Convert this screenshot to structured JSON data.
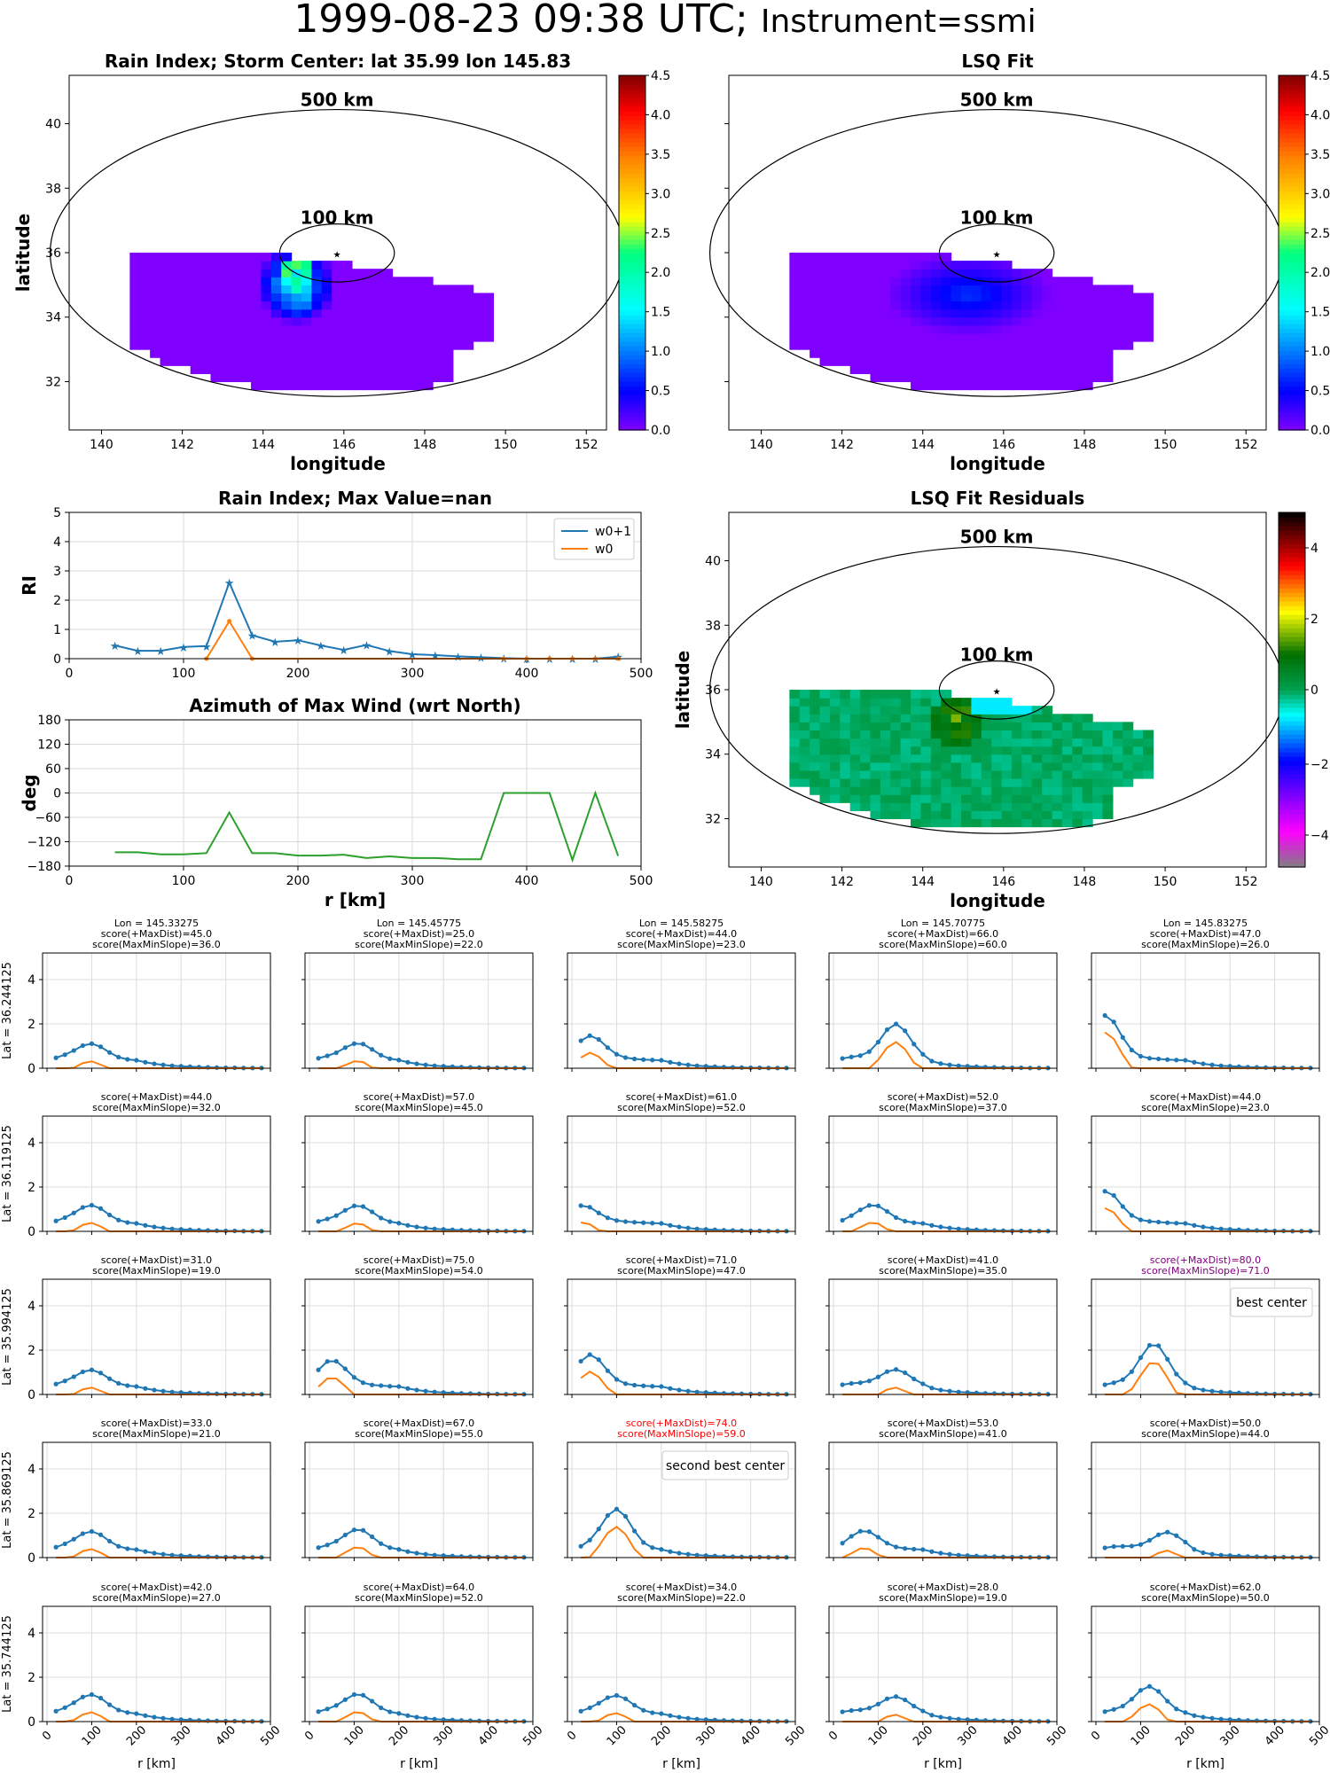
{
  "header": {
    "datetime": "1999-08-23 09:38 UTC;",
    "instrument": "Instrument=ssmi"
  },
  "map_panels": [
    {
      "key": "rain",
      "title": "Rain Index; Storm Center: lat 35.99 lon 145.83",
      "xlabel": "longitude",
      "ylabel": "latitude",
      "ring_labels": [
        "500 km",
        "100 km"
      ],
      "colorbar_ticks": [
        "0.0",
        "0.5",
        "1.0",
        "1.5",
        "2.0",
        "2.5",
        "3.0",
        "3.5",
        "4.0",
        "4.5"
      ],
      "cmap": "jet"
    },
    {
      "key": "lsq",
      "title": "LSQ Fit",
      "xlabel": "longitude",
      "ylabel": "",
      "ring_labels": [
        "500 km",
        "100 km"
      ],
      "colorbar_ticks": [
        "0.0",
        "0.5",
        "1.0",
        "1.5",
        "2.0",
        "2.5",
        "3.0",
        "3.5",
        "4.0",
        "4.5"
      ],
      "cmap": "jet"
    },
    {
      "key": "resid",
      "title": "LSQ Fit Residuals",
      "xlabel": "longitude",
      "ylabel": "latitude",
      "ring_labels": [
        "500 km",
        "100 km"
      ],
      "colorbar_ticks": [
        "−4",
        "−2",
        "0",
        "2",
        "4"
      ],
      "cmap": "rainbow"
    }
  ],
  "map_axes": {
    "x_ticks": [
      "140",
      "142",
      "144",
      "146",
      "148",
      "150",
      "152"
    ],
    "y_ticks": [
      "32",
      "34",
      "36",
      "38",
      "40"
    ]
  },
  "chart_data": [
    {
      "type": "line",
      "title": "Rain Index; Max Value=nan",
      "ylabel": "RI",
      "xlabel": "",
      "xlim": [
        0,
        500
      ],
      "ylim": [
        0,
        5
      ],
      "grid": true,
      "legend": "top-right",
      "x_ticks": [
        "0",
        "100",
        "200",
        "300",
        "400",
        "500"
      ],
      "y_ticks": [
        "0",
        "1",
        "2",
        "3",
        "4",
        "5"
      ],
      "series": [
        {
          "name": "w0+1",
          "color": "#1f77b4",
          "marker": "star",
          "x": [
            40,
            60,
            80,
            100,
            120,
            140,
            160,
            180,
            200,
            220,
            240,
            260,
            280,
            300,
            320,
            340,
            360,
            380,
            400,
            420,
            440,
            460,
            480
          ],
          "values": [
            0.45,
            0.27,
            0.27,
            0.4,
            0.43,
            2.6,
            0.8,
            0.58,
            0.63,
            0.45,
            0.3,
            0.47,
            0.26,
            0.15,
            0.12,
            0.08,
            0.05,
            0.02,
            0.0,
            0.0,
            0.0,
            0.0,
            0.07
          ]
        },
        {
          "name": "w0",
          "color": "#ff7f0e",
          "marker": "dot",
          "x": [
            120,
            140,
            160,
            380,
            400,
            420,
            440,
            460,
            480
          ],
          "values": [
            0.0,
            1.28,
            0.0,
            0.0,
            0.0,
            0.0,
            0.0,
            0.0,
            0.0
          ]
        }
      ]
    },
    {
      "type": "line",
      "title": "Azimuth of Max Wind (wrt North)",
      "ylabel": "deg",
      "xlabel": "r [km]",
      "xlim": [
        0,
        500
      ],
      "ylim": [
        -180,
        180
      ],
      "grid": true,
      "x_ticks": [
        "0",
        "100",
        "200",
        "300",
        "400",
        "500"
      ],
      "y_ticks": [
        "180",
        "120",
        "60",
        "0",
        "−60",
        "−120",
        "−180"
      ],
      "series": [
        {
          "color": "#2ca02c",
          "x": [
            40,
            60,
            80,
            100,
            120,
            140,
            160,
            180,
            200,
            220,
            240,
            260,
            280,
            300,
            320,
            340,
            360,
            380,
            400,
            420,
            440,
            460,
            480
          ],
          "values": [
            -146,
            -146,
            -151,
            -151,
            -148,
            -48,
            -148,
            -148,
            -154,
            -154,
            -152,
            -160,
            -156,
            -160,
            -160,
            -163,
            -163,
            0,
            0,
            0,
            -165,
            0,
            -155
          ]
        }
      ]
    }
  ],
  "grid_panels": {
    "row_labels": [
      "Lat = 36.244125",
      "Lat = 36.119125",
      "Lat = 35.994125",
      "Lat = 35.869125",
      "Lat = 35.744125"
    ],
    "col_lons": [
      "Lon = 145.33275",
      "Lon = 145.45775",
      "Lon = 145.58275",
      "Lon = 145.70775",
      "Lon = 145.83275"
    ],
    "xlabel": "r [km]",
    "x_ticks": [
      "0",
      "100",
      "200",
      "300",
      "400",
      "500"
    ],
    "y_ticks": [
      "0",
      "2",
      "4"
    ],
    "best_center_label": "best center",
    "second_best_label": "second best center",
    "scores": [
      [
        [
          "score(+MaxDist)=45.0",
          "score(MaxMinSlope)=36.0"
        ],
        [
          "score(+MaxDist)=25.0",
          "score(MaxMinSlope)=22.0"
        ],
        [
          "score(+MaxDist)=44.0",
          "score(MaxMinSlope)=23.0"
        ],
        [
          "score(+MaxDist)=66.0",
          "score(MaxMinSlope)=60.0"
        ],
        [
          "score(+MaxDist)=47.0",
          "score(MaxMinSlope)=26.0"
        ]
      ],
      [
        [
          "score(+MaxDist)=44.0",
          "score(MaxMinSlope)=32.0"
        ],
        [
          "score(+MaxDist)=57.0",
          "score(MaxMinSlope)=45.0"
        ],
        [
          "score(+MaxDist)=61.0",
          "score(MaxMinSlope)=52.0"
        ],
        [
          "score(+MaxDist)=52.0",
          "score(MaxMinSlope)=37.0"
        ],
        [
          "score(+MaxDist)=44.0",
          "score(MaxMinSlope)=23.0"
        ]
      ],
      [
        [
          "score(+MaxDist)=31.0",
          "score(MaxMinSlope)=19.0"
        ],
        [
          "score(+MaxDist)=75.0",
          "score(MaxMinSlope)=54.0"
        ],
        [
          "score(+MaxDist)=71.0",
          "score(MaxMinSlope)=47.0"
        ],
        [
          "score(+MaxDist)=41.0",
          "score(MaxMinSlope)=35.0"
        ],
        [
          "score(+MaxDist)=80.0",
          "score(MaxMinSlope)=71.0"
        ]
      ],
      [
        [
          "score(+MaxDist)=33.0",
          "score(MaxMinSlope)=21.0"
        ],
        [
          "score(+MaxDist)=67.0",
          "score(MaxMinSlope)=55.0"
        ],
        [
          "score(+MaxDist)=74.0",
          "score(MaxMinSlope)=59.0"
        ],
        [
          "score(+MaxDist)=53.0",
          "score(MaxMinSlope)=41.0"
        ],
        [
          "score(+MaxDist)=50.0",
          "score(MaxMinSlope)=44.0"
        ]
      ],
      [
        [
          "score(+MaxDist)=42.0",
          "score(MaxMinSlope)=27.0"
        ],
        [
          "score(+MaxDist)=64.0",
          "score(MaxMinSlope)=52.0"
        ],
        [
          "score(+MaxDist)=34.0",
          "score(MaxMinSlope)=22.0"
        ],
        [
          "score(+MaxDist)=28.0",
          "score(MaxMinSlope)=19.0"
        ],
        [
          "score(+MaxDist)=62.0",
          "score(MaxMinSlope)=50.0"
        ]
      ]
    ],
    "highlight": {
      "best": [
        2,
        4
      ],
      "best_color": "#800080",
      "second": [
        3,
        2
      ],
      "second_color": "#ff0000"
    },
    "colors": {
      "w0p1": "#1f77b4",
      "w0": "#ff7f0e"
    }
  }
}
